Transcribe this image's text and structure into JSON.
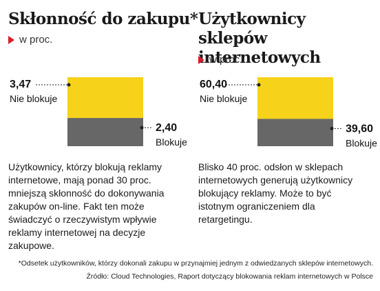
{
  "chart_data": [
    {
      "type": "bar",
      "title": "Skłonność do zakupu*",
      "unit": "w proc.",
      "categories": [
        "Nie blokuje",
        "Blokuje"
      ],
      "values": [
        3.47,
        2.4
      ],
      "value_labels": [
        "3,47",
        "2,40"
      ],
      "colors": [
        "#f6d21a",
        "#676767"
      ],
      "description": "Użytkownicy, którzy blokują reklamy internetowe, mają ponad 30 proc. mniejszą skłonność do dokonywania zakupów on-line. Fakt ten może świadczyć o rzeczywistym wpływie reklamy internetowej na decyzje zakupowe."
    },
    {
      "type": "bar",
      "title": "Użytkownicy sklepów internetowych",
      "unit": "w proc.",
      "categories": [
        "Nie blokuje",
        "Blokuje"
      ],
      "values": [
        60.4,
        39.6
      ],
      "value_labels": [
        "60,40",
        "39,60"
      ],
      "colors": [
        "#f6d21a",
        "#676767"
      ],
      "description": "Blisko 40 proc. odsłon w sklepach internetowych generują użytkownicy blokujący reklamy. Może to być istotnym ograniczeniem dla retargetingu."
    }
  ],
  "footnote": "*Odsetek użytkowników, którzy dokonali zakupu w przynajmiej jednym z odwiedzanych sklepów internetowych.",
  "source": "Źródło: Cloud Technologies, Raport dotyczący blokowania reklam internetowych w Polsce",
  "colors": {
    "accent": "#d81e2c",
    "yellow": "#f6d21a",
    "gray": "#676767"
  }
}
